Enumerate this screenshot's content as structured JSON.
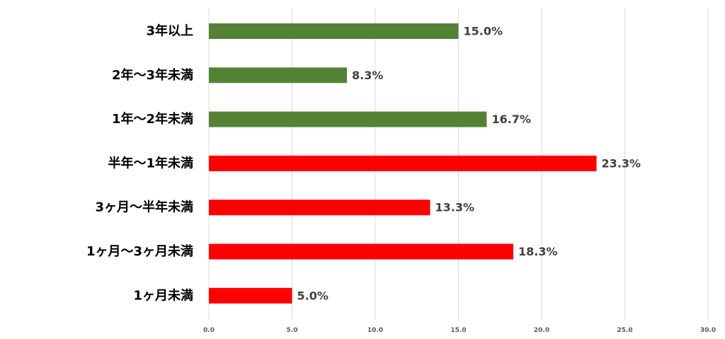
{
  "chart_data": {
    "type": "bar",
    "orientation": "horizontal",
    "categories": [
      "3年以上",
      "2年～3年未満",
      "1年～2年未満",
      "半年～1年未満",
      "3ヶ月～半年未満",
      "1ヶ月～3ヶ月未満",
      "1ヶ月未満"
    ],
    "values": [
      15.0,
      8.3,
      16.7,
      23.3,
      13.3,
      18.3,
      5.0
    ],
    "value_labels": [
      "15.0%",
      "8.3%",
      "16.7%",
      "23.3%",
      "13.3%",
      "18.3%",
      "5.0%"
    ],
    "colors": [
      "#548235",
      "#548235",
      "#548235",
      "#ff0000",
      "#ff0000",
      "#ff0000",
      "#ff0000"
    ],
    "xlim": [
      0,
      30
    ],
    "x_ticks": [
      0,
      5,
      10,
      15,
      20,
      25,
      30
    ],
    "x_tick_labels": [
      "0.0",
      "5.0",
      "10.0",
      "15.0",
      "20.0",
      "25.0",
      "30.0"
    ],
    "title": "",
    "xlabel": "",
    "ylabel": "",
    "grid": "vertical",
    "legend": "none"
  }
}
